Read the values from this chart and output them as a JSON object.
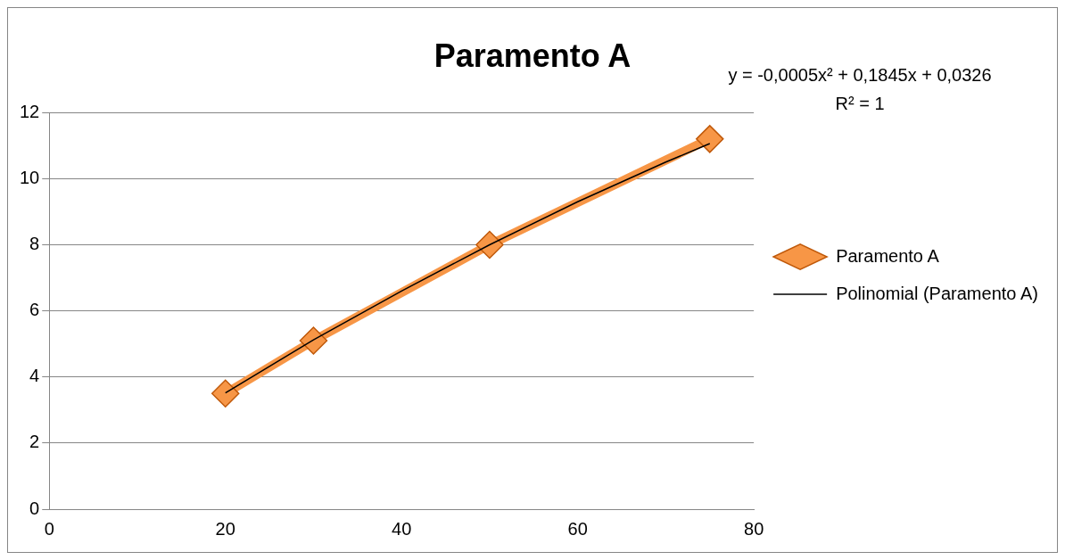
{
  "chart_data": {
    "type": "line",
    "title": "Paramento A",
    "annotations": [
      "y = -0,0005x² + 0,1845x + 0,0326",
      "R² = 1"
    ],
    "series": [
      {
        "name": "Paramento A",
        "color": "#f79646",
        "x": [
          20,
          30,
          50,
          75
        ],
        "values": [
          3.5,
          5.1,
          8.0,
          11.2
        ],
        "marker": "diamond"
      },
      {
        "name": "Polinomial (Paramento A)",
        "color": "#000000",
        "x": [
          20,
          30,
          40,
          50,
          60,
          70,
          75
        ],
        "values": [
          3.52,
          5.12,
          6.6,
          8.0,
          9.3,
          10.5,
          11.06
        ],
        "marker": "none"
      }
    ],
    "xlim": [
      0,
      80
    ],
    "xticks": [
      0,
      20,
      40,
      60,
      80
    ],
    "ylim": [
      0,
      12
    ],
    "yticks": [
      0,
      2,
      4,
      6,
      8,
      10,
      12
    ],
    "grid": "y",
    "legend": "right"
  }
}
